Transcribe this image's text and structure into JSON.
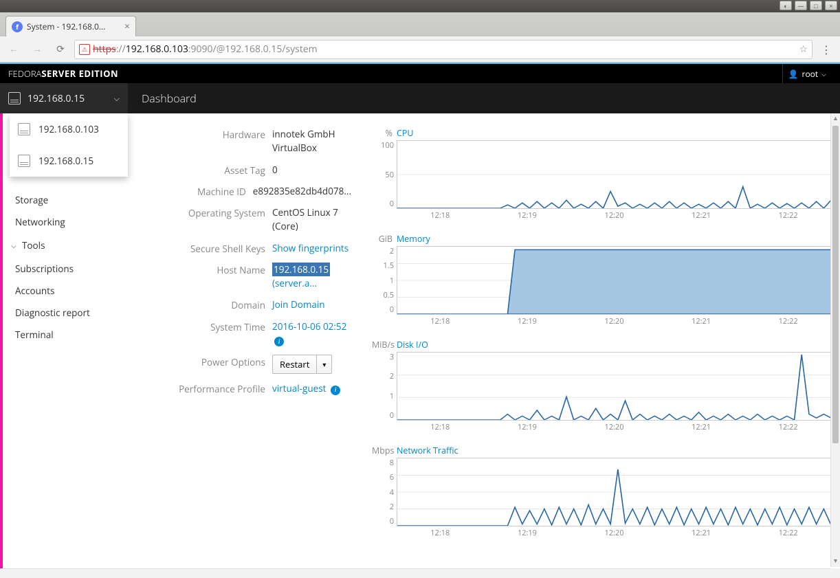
{
  "window": {
    "tab_title": "System - 192.168.0...",
    "url_scheme": "https",
    "url_host": "192.168.0.103",
    "url_port": ":9090",
    "url_path": "/@192.168.0.15/system"
  },
  "brand": {
    "light": "FEDORA ",
    "bold": "SERVER EDITION"
  },
  "user": "root",
  "host_current": "192.168.0.15",
  "host_list": [
    "192.168.0.103",
    "192.168.0.15"
  ],
  "breadcrumb": "Dashboard",
  "sidebar": {
    "items_top": [
      "Storage",
      "Networking"
    ],
    "group": "Tools",
    "items_bottom": [
      "Subscriptions",
      "Accounts",
      "Diagnostic report",
      "Terminal"
    ]
  },
  "info": {
    "hardware_label": "Hardware",
    "hardware_v1": "innotek GmbH",
    "hardware_v2": "VirtualBox",
    "asset_label": "Asset Tag",
    "asset_val": "0",
    "machine_label": "Machine ID",
    "machine_val": "e892835e82db4d078...",
    "os_label": "Operating System",
    "os_val": "CentOS Linux 7 (Core)",
    "ssh_label": "Secure Shell Keys",
    "ssh_link": "Show fingerprints",
    "hostname_label": "Host Name",
    "hostname_sel": "192.168.0.15",
    "hostname_rest": " (server.a...",
    "domain_label": "Domain",
    "domain_link": "Join Domain",
    "time_label": "System Time",
    "time_val": "2016-10-06 02:52",
    "power_label": "Power Options",
    "power_btn": "Restart",
    "perf_label": "Performance Profile",
    "perf_val": "virtual-guest"
  },
  "charts": {
    "x_ticks": [
      "12:18",
      "12:19",
      "12:20",
      "12:21",
      "12:22"
    ],
    "line_color": "#2868a8",
    "fill_color": "#a6c7e4",
    "grid_color": "#e8e8e8",
    "cpu": {
      "unit": "%",
      "title": "CPU",
      "height": 100,
      "y_ticks": [
        "100",
        "50",
        "0"
      ],
      "ymax": 100,
      "values": [
        0,
        0,
        0,
        0,
        0,
        0,
        0,
        0,
        0,
        0,
        0,
        0,
        0,
        0,
        0,
        5,
        0,
        8,
        0,
        10,
        0,
        8,
        0,
        12,
        0,
        6,
        0,
        10,
        0,
        25,
        3,
        8,
        0,
        6,
        0,
        8,
        0,
        10,
        0,
        8,
        0,
        6,
        0,
        8,
        0,
        10,
        0,
        32,
        0,
        6,
        0,
        8,
        0,
        7,
        0,
        8,
        0,
        10,
        0,
        12
      ]
    },
    "memory": {
      "unit": "GiB",
      "title": "Memory",
      "height": 100,
      "y_ticks": [
        "2",
        "1.5",
        "1",
        "0.5",
        "0"
      ],
      "ymax": 2.2,
      "fill": true,
      "values": [
        0,
        0,
        0,
        0,
        0,
        0,
        0,
        0,
        0,
        0,
        0,
        0,
        0,
        0,
        0,
        0,
        2.1,
        2.1,
        2.1,
        2.1,
        2.1,
        2.1,
        2.1,
        2.1,
        2.1,
        2.1,
        2.1,
        2.1,
        2.1,
        2.1,
        2.1,
        2.1,
        2.1,
        2.1,
        2.1,
        2.1,
        2.1,
        2.1,
        2.1,
        2.1,
        2.1,
        2.1,
        2.1,
        2.1,
        2.1,
        2.1,
        2.1,
        2.1,
        2.1,
        2.1,
        2.1,
        2.1,
        2.1,
        2.1,
        2.1,
        2.1,
        2.1,
        2.1,
        2.1,
        2.1
      ]
    },
    "disk": {
      "unit": "MiB/s",
      "title": "Disk I/O",
      "height": 100,
      "y_ticks": [
        "3",
        "2",
        "1",
        "0"
      ],
      "ymax": 3.5,
      "values": [
        0,
        0,
        0,
        0,
        0,
        0,
        0,
        0,
        0,
        0,
        0,
        0,
        0,
        0,
        0,
        0.3,
        0,
        0.2,
        0,
        0.5,
        0,
        0.2,
        0,
        1.2,
        0,
        0.2,
        0,
        0.6,
        0,
        0.3,
        0,
        1.0,
        0,
        0.3,
        0,
        0.2,
        0,
        0.3,
        0,
        0.2,
        0,
        0.4,
        0,
        0.2,
        0,
        0.3,
        0,
        0.2,
        0,
        0.3,
        0,
        0.2,
        0,
        0.2,
        0,
        3.4,
        0.3,
        0.1,
        0.3,
        0.1
      ]
    },
    "net": {
      "unit": "Mbps",
      "title": "Network Traffic",
      "height": 100,
      "y_ticks": [
        "8",
        "6",
        "4",
        "2",
        "0"
      ],
      "ymax": 8,
      "values": [
        0,
        0,
        0,
        0,
        0,
        0,
        0,
        0,
        0,
        0,
        0,
        0,
        0,
        0,
        0,
        0,
        2.2,
        0.2,
        1.8,
        0.2,
        2.0,
        0.1,
        2.2,
        0.2,
        2.0,
        0.1,
        2.5,
        0.2,
        2.0,
        0.2,
        6.7,
        0.3,
        2.0,
        0.2,
        2.2,
        0.1,
        2.0,
        0.2,
        2.2,
        0.1,
        2.0,
        0.2,
        2.2,
        0.2,
        2.0,
        0.1,
        2.2,
        0.2,
        2.0,
        0.1,
        2.0,
        0.2,
        2.2,
        0.1,
        2.0,
        0.2,
        2.2,
        0.2,
        2.0,
        0.1
      ]
    }
  }
}
